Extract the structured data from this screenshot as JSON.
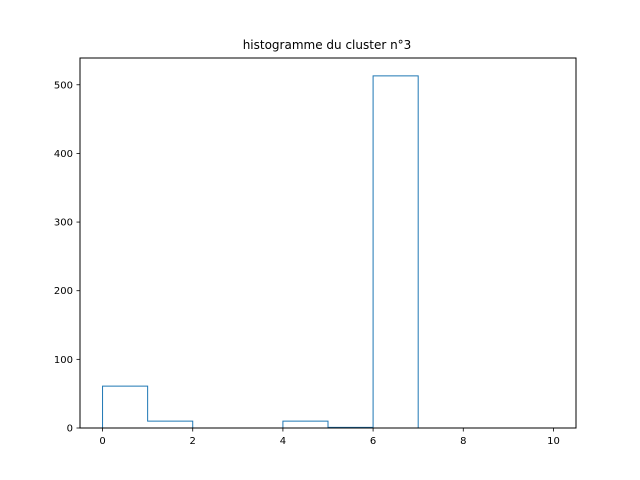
{
  "chart_data": {
    "type": "bar",
    "style": "step-histogram",
    "title": "histogramme du cluster n°3",
    "xlabel": "",
    "ylabel": "",
    "bin_edges": [
      0,
      1,
      2,
      3,
      4,
      5,
      6,
      7,
      8,
      9,
      10
    ],
    "counts": [
      61,
      10,
      0,
      0,
      10,
      1,
      513,
      0,
      0,
      0
    ],
    "xlim": [
      -0.5,
      10.5
    ],
    "ylim": [
      0,
      539
    ],
    "xticks": [
      0,
      2,
      4,
      6,
      8,
      10
    ],
    "yticks": [
      0,
      100,
      200,
      300,
      400,
      500
    ],
    "grid": false,
    "line_color": "#1f77b4"
  }
}
